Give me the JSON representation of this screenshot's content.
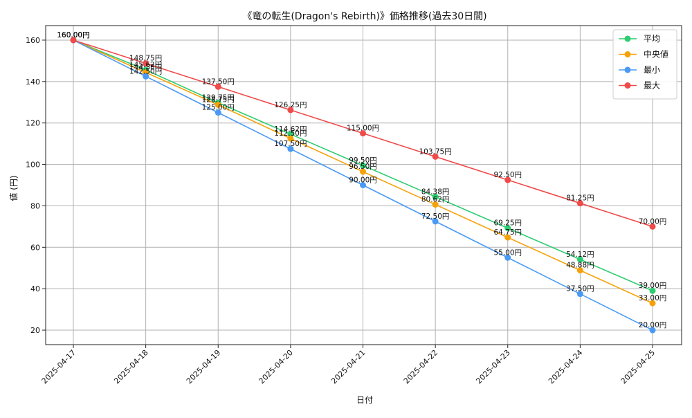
{
  "chart_data": {
    "type": "line",
    "title": "《竜の転生(Dragon's Rebirth)》価格推移(過去30日間)",
    "xlabel": "日付",
    "ylabel": "値 (円)",
    "categories": [
      "2025-04-17",
      "2025-04-18",
      "2025-04-19",
      "2025-04-20",
      "2025-04-21",
      "2025-04-22",
      "2025-04-23",
      "2025-04-24",
      "2025-04-25"
    ],
    "ylim": [
      13,
      167
    ],
    "yticks": [
      20,
      40,
      60,
      80,
      100,
      120,
      140,
      160
    ],
    "grid": true,
    "legend_position": "top-right",
    "value_suffix": "円",
    "series": [
      {
        "name": "平均",
        "color": "#2ecc71",
        "values": [
          160.0,
          145.62,
          129.75,
          114.62,
          99.5,
          84.38,
          69.25,
          54.12,
          39.0
        ]
      },
      {
        "name": "中央値",
        "color": "#f5a20a",
        "values": [
          160.0,
          144.38,
          128.75,
          112.5,
          96.5,
          80.62,
          64.75,
          48.88,
          33.0
        ]
      },
      {
        "name": "最小",
        "color": "#4a9af5",
        "values": [
          160.0,
          142.5,
          125.0,
          107.5,
          90.0,
          72.5,
          55.0,
          37.5,
          20.0
        ]
      },
      {
        "name": "最大",
        "color": "#f04a4a",
        "values": [
          160.0,
          148.75,
          137.5,
          126.25,
          115.0,
          103.75,
          92.5,
          81.25,
          70.0
        ]
      }
    ]
  }
}
